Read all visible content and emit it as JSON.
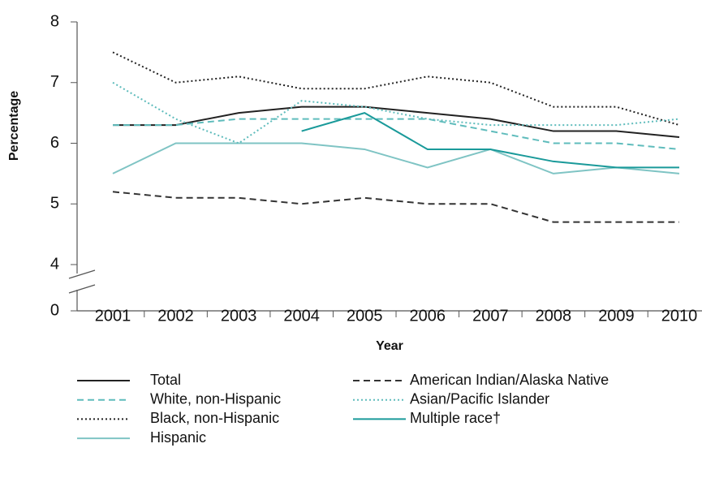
{
  "chart_data": {
    "type": "line",
    "x_label": "Year",
    "y_label": "Percentage",
    "categories": [
      "2001",
      "2002",
      "2003",
      "2004",
      "2005",
      "2006",
      "2007",
      "2008",
      "2009",
      "2010"
    ],
    "ylim": [
      0,
      8
    ],
    "yticks": [
      0,
      4,
      5,
      6,
      7,
      8
    ],
    "axis_break": [
      0,
      4
    ],
    "series": [
      {
        "name": "Total",
        "color": "#222222",
        "dash": "solid",
        "values": [
          6.3,
          6.3,
          6.5,
          6.6,
          6.6,
          6.5,
          6.4,
          6.2,
          6.2,
          6.1
        ]
      },
      {
        "name": "White, non-Hispanic",
        "color": "#5fbcbc",
        "dash": "dashed",
        "values": [
          6.3,
          6.3,
          6.4,
          6.4,
          6.4,
          6.4,
          6.2,
          6.0,
          6.0,
          5.9
        ]
      },
      {
        "name": "Black, non-Hispanic",
        "color": "#222222",
        "dash": "dotted",
        "values": [
          7.5,
          7.0,
          7.1,
          6.9,
          6.9,
          7.1,
          7.0,
          6.6,
          6.6,
          6.3
        ]
      },
      {
        "name": "Hispanic",
        "color": "#7fc4c4",
        "dash": "solid",
        "values": [
          5.5,
          6.0,
          6.0,
          6.0,
          5.9,
          5.6,
          5.9,
          5.5,
          5.6,
          5.5
        ]
      },
      {
        "name": "American Indian/Alaska Native",
        "color": "#333333",
        "dash": "dashed",
        "values": [
          5.2,
          5.1,
          5.1,
          5.0,
          5.1,
          5.0,
          5.0,
          4.7,
          4.7,
          4.7
        ]
      },
      {
        "name": "Asian/Pacific Islander",
        "color": "#5fbcbc",
        "dash": "dotted",
        "values": [
          7.0,
          6.4,
          6.0,
          6.7,
          6.6,
          6.4,
          6.3,
          6.3,
          6.3,
          6.4
        ]
      },
      {
        "name": "Multiple race†",
        "color": "#1a9a9a",
        "dash": "solid",
        "values": [
          null,
          null,
          null,
          6.2,
          6.5,
          5.9,
          5.9,
          5.7,
          5.6,
          5.6
        ]
      }
    ]
  }
}
